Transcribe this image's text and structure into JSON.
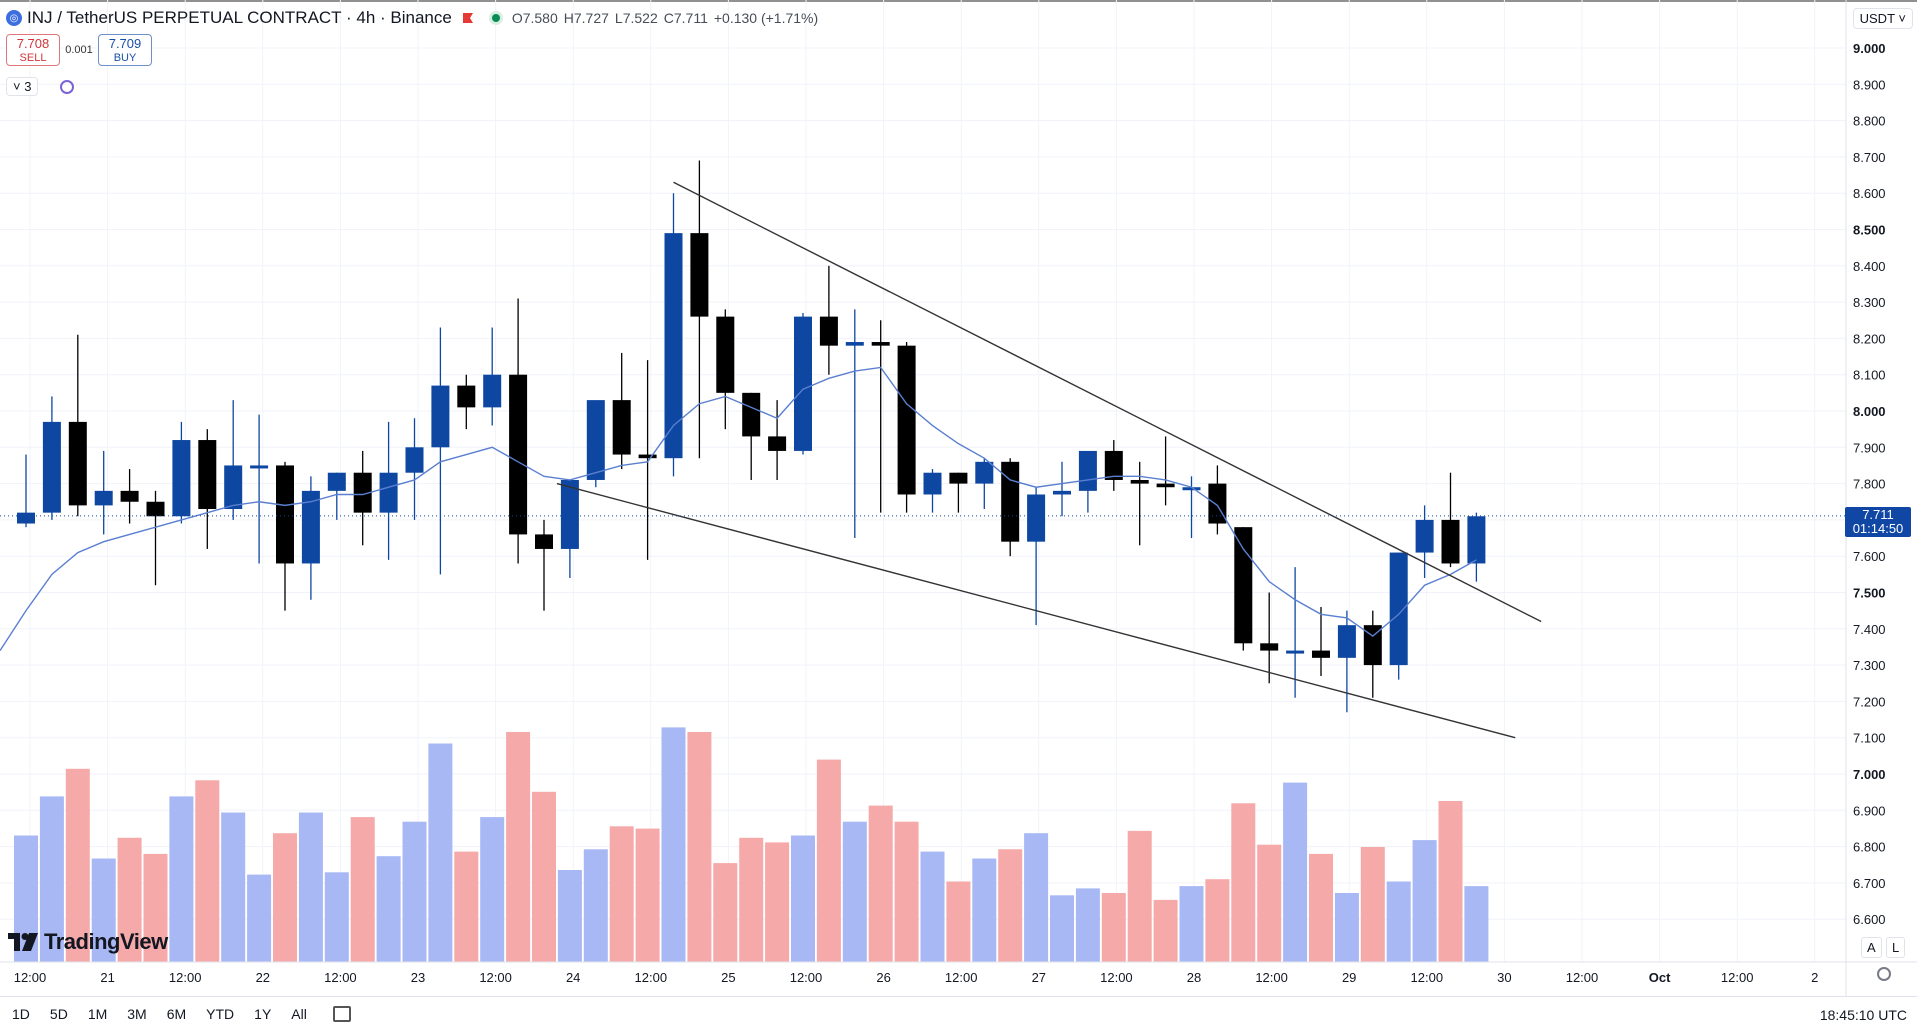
{
  "header": {
    "title": "INJ / TetherUS PERPETUAL CONTRACT · 4h · Binance",
    "open": "O7.580",
    "high": "H7.727",
    "low": "L7.522",
    "close": "C7.711",
    "change": "+0.130 (+1.71%)",
    "symbol_icon": "injective-icon"
  },
  "trade": {
    "sell_price": "7.708",
    "sell_label": "SELL",
    "spread": "0.001",
    "buy_price": "7.709",
    "buy_label": "BUY"
  },
  "indicators": {
    "count_label": "3"
  },
  "currency": "USDT",
  "price_tag": {
    "price": "7.711",
    "countdown": "01:14:50"
  },
  "brand": "TradingView",
  "scale_buttons": [
    "A",
    "L"
  ],
  "ranges": [
    "1D",
    "5D",
    "1M",
    "3M",
    "6M",
    "YTD",
    "1Y",
    "All"
  ],
  "clock": "18:45:10 UTC",
  "colors": {
    "up": "#0d47a1",
    "down": "#000000",
    "vol_up": "#a7b8f5",
    "vol_down": "#f6a9a9",
    "ma": "#5a7fd0",
    "trendline": "#333333",
    "price_tag": "#1047a4"
  },
  "chart_data": {
    "type": "candlestick",
    "interval": "4h",
    "y_axis": {
      "range": [
        6.55,
        9.05
      ],
      "ticks": [
        "9.000",
        "8.900",
        "8.800",
        "8.700",
        "8.600",
        "8.500",
        "8.400",
        "8.300",
        "8.200",
        "8.100",
        "8.000",
        "7.900",
        "7.800",
        "7.700",
        "7.600",
        "7.500",
        "7.400",
        "7.300",
        "7.200",
        "7.100",
        "7.000",
        "6.900",
        "6.800",
        "6.700",
        "6.600"
      ],
      "bold_ticks": [
        "9.000",
        "8.500",
        "8.000",
        "7.500",
        "7.000"
      ]
    },
    "x_axis": {
      "labels": [
        "12:00",
        "21",
        "12:00",
        "22",
        "12:00",
        "23",
        "12:00",
        "24",
        "12:00",
        "25",
        "12:00",
        "26",
        "12:00",
        "27",
        "12:00",
        "28",
        "12:00",
        "29",
        "12:00",
        "30",
        "12:00",
        "Oct",
        "12:00",
        "2"
      ],
      "bold_labels": [
        "Oct"
      ]
    },
    "candles": [
      {
        "o": 7.69,
        "h": 7.88,
        "l": 7.68,
        "c": 7.72
      },
      {
        "o": 7.72,
        "h": 8.04,
        "l": 7.7,
        "c": 7.97
      },
      {
        "o": 7.97,
        "h": 8.21,
        "l": 7.71,
        "c": 7.74
      },
      {
        "o": 7.74,
        "h": 7.89,
        "l": 7.66,
        "c": 7.78
      },
      {
        "o": 7.78,
        "h": 7.84,
        "l": 7.69,
        "c": 7.75
      },
      {
        "o": 7.75,
        "h": 7.78,
        "l": 7.52,
        "c": 7.71
      },
      {
        "o": 7.71,
        "h": 7.97,
        "l": 7.69,
        "c": 7.92
      },
      {
        "o": 7.92,
        "h": 7.95,
        "l": 7.62,
        "c": 7.73
      },
      {
        "o": 7.73,
        "h": 8.03,
        "l": 7.7,
        "c": 7.85
      },
      {
        "o": 7.85,
        "h": 7.99,
        "l": 7.58,
        "c": 7.85
      },
      {
        "o": 7.85,
        "h": 7.86,
        "l": 7.45,
        "c": 7.58
      },
      {
        "o": 7.58,
        "h": 7.82,
        "l": 7.48,
        "c": 7.78
      },
      {
        "o": 7.78,
        "h": 7.83,
        "l": 7.7,
        "c": 7.83
      },
      {
        "o": 7.83,
        "h": 7.89,
        "l": 7.63,
        "c": 7.72
      },
      {
        "o": 7.72,
        "h": 7.97,
        "l": 7.59,
        "c": 7.83
      },
      {
        "o": 7.83,
        "h": 7.98,
        "l": 7.7,
        "c": 7.9
      },
      {
        "o": 7.9,
        "h": 8.23,
        "l": 7.55,
        "c": 8.07
      },
      {
        "o": 8.07,
        "h": 8.1,
        "l": 7.95,
        "c": 8.01
      },
      {
        "o": 8.01,
        "h": 8.23,
        "l": 7.96,
        "c": 8.1
      },
      {
        "o": 8.1,
        "h": 8.31,
        "l": 7.58,
        "c": 7.66
      },
      {
        "o": 7.66,
        "h": 7.7,
        "l": 7.45,
        "c": 7.62
      },
      {
        "o": 7.62,
        "h": 7.8,
        "l": 7.54,
        "c": 7.81
      },
      {
        "o": 7.81,
        "h": 8.01,
        "l": 7.79,
        "c": 8.03
      },
      {
        "o": 8.03,
        "h": 8.16,
        "l": 7.84,
        "c": 7.88
      },
      {
        "o": 7.88,
        "h": 8.14,
        "l": 7.59,
        "c": 7.87
      },
      {
        "o": 7.87,
        "h": 8.6,
        "l": 7.82,
        "c": 8.49
      },
      {
        "o": 8.49,
        "h": 8.69,
        "l": 7.87,
        "c": 8.26
      },
      {
        "o": 8.26,
        "h": 8.28,
        "l": 7.95,
        "c": 8.05
      },
      {
        "o": 8.05,
        "h": 8.05,
        "l": 7.81,
        "c": 7.93
      },
      {
        "o": 7.93,
        "h": 8.03,
        "l": 7.81,
        "c": 7.89
      },
      {
        "o": 7.89,
        "h": 8.27,
        "l": 7.88,
        "c": 8.26
      },
      {
        "o": 8.26,
        "h": 8.4,
        "l": 8.1,
        "c": 8.18
      },
      {
        "o": 8.18,
        "h": 8.28,
        "l": 7.65,
        "c": 8.19
      },
      {
        "o": 8.19,
        "h": 8.25,
        "l": 7.72,
        "c": 8.18
      },
      {
        "o": 8.18,
        "h": 8.19,
        "l": 7.72,
        "c": 7.77
      },
      {
        "o": 7.77,
        "h": 7.84,
        "l": 7.72,
        "c": 7.83
      },
      {
        "o": 7.83,
        "h": 7.83,
        "l": 7.72,
        "c": 7.8
      },
      {
        "o": 7.8,
        "h": 7.87,
        "l": 7.73,
        "c": 7.86
      },
      {
        "o": 7.86,
        "h": 7.87,
        "l": 7.6,
        "c": 7.64
      },
      {
        "o": 7.64,
        "h": 7.79,
        "l": 7.41,
        "c": 7.77
      },
      {
        "o": 7.77,
        "h": 7.86,
        "l": 7.71,
        "c": 7.78
      },
      {
        "o": 7.78,
        "h": 7.89,
        "l": 7.72,
        "c": 7.89
      },
      {
        "o": 7.89,
        "h": 7.92,
        "l": 7.78,
        "c": 7.81
      },
      {
        "o": 7.81,
        "h": 7.86,
        "l": 7.63,
        "c": 7.8
      },
      {
        "o": 7.8,
        "h": 7.93,
        "l": 7.74,
        "c": 7.79
      },
      {
        "o": 7.79,
        "h": 7.82,
        "l": 7.65,
        "c": 7.79
      },
      {
        "o": 7.8,
        "h": 7.85,
        "l": 7.66,
        "c": 7.69
      },
      {
        "o": 7.68,
        "h": 7.68,
        "l": 7.34,
        "c": 7.36
      },
      {
        "o": 7.36,
        "h": 7.5,
        "l": 7.25,
        "c": 7.34
      },
      {
        "o": 7.34,
        "h": 7.57,
        "l": 7.21,
        "c": 7.34
      },
      {
        "o": 7.34,
        "h": 7.46,
        "l": 7.27,
        "c": 7.32
      },
      {
        "o": 7.32,
        "h": 7.45,
        "l": 7.17,
        "c": 7.41
      },
      {
        "o": 7.41,
        "h": 7.45,
        "l": 7.21,
        "c": 7.3
      },
      {
        "o": 7.3,
        "h": 7.61,
        "l": 7.26,
        "c": 7.61
      },
      {
        "o": 7.61,
        "h": 7.74,
        "l": 7.54,
        "c": 7.7
      },
      {
        "o": 7.7,
        "h": 7.83,
        "l": 7.57,
        "c": 7.58
      },
      {
        "o": 7.58,
        "h": 7.72,
        "l": 7.53,
        "c": 7.71
      }
    ],
    "volume": [
      0.55,
      0.72,
      0.84,
      0.45,
      0.54,
      0.47,
      0.72,
      0.79,
      0.65,
      0.38,
      0.56,
      0.65,
      0.39,
      0.63,
      0.46,
      0.61,
      0.95,
      0.48,
      0.63,
      1.0,
      0.74,
      0.4,
      0.49,
      0.59,
      0.58,
      1.02,
      1.0,
      0.43,
      0.54,
      0.52,
      0.55,
      0.88,
      0.61,
      0.68,
      0.61,
      0.48,
      0.35,
      0.45,
      0.49,
      0.56,
      0.29,
      0.32,
      0.3,
      0.57,
      0.27,
      0.33,
      0.36,
      0.69,
      0.51,
      0.78,
      0.47,
      0.3,
      0.5,
      0.35,
      0.53,
      0.7,
      0.33
    ],
    "moving_average": [
      7.45,
      7.55,
      7.61,
      7.64,
      7.66,
      7.68,
      7.7,
      7.72,
      7.74,
      7.75,
      7.74,
      7.75,
      7.77,
      7.77,
      7.79,
      7.81,
      7.86,
      7.88,
      7.9,
      7.86,
      7.82,
      7.81,
      7.83,
      7.85,
      7.86,
      7.96,
      8.02,
      8.04,
      8.01,
      7.98,
      8.06,
      8.09,
      8.11,
      8.12,
      8.02,
      7.96,
      7.91,
      7.87,
      7.81,
      7.79,
      7.8,
      7.81,
      7.82,
      7.82,
      7.81,
      7.79,
      7.74,
      7.62,
      7.53,
      7.48,
      7.44,
      7.43,
      7.38,
      7.44,
      7.52,
      7.55,
      7.59
    ],
    "trendlines": [
      {
        "from": {
          "i": 25,
          "p": 8.63
        },
        "to": {
          "i": 58.5,
          "p": 7.42
        }
      },
      {
        "from": {
          "i": 20.5,
          "p": 7.8
        },
        "to": {
          "i": 57.5,
          "p": 7.1
        }
      }
    ],
    "last_price": 7.711
  }
}
